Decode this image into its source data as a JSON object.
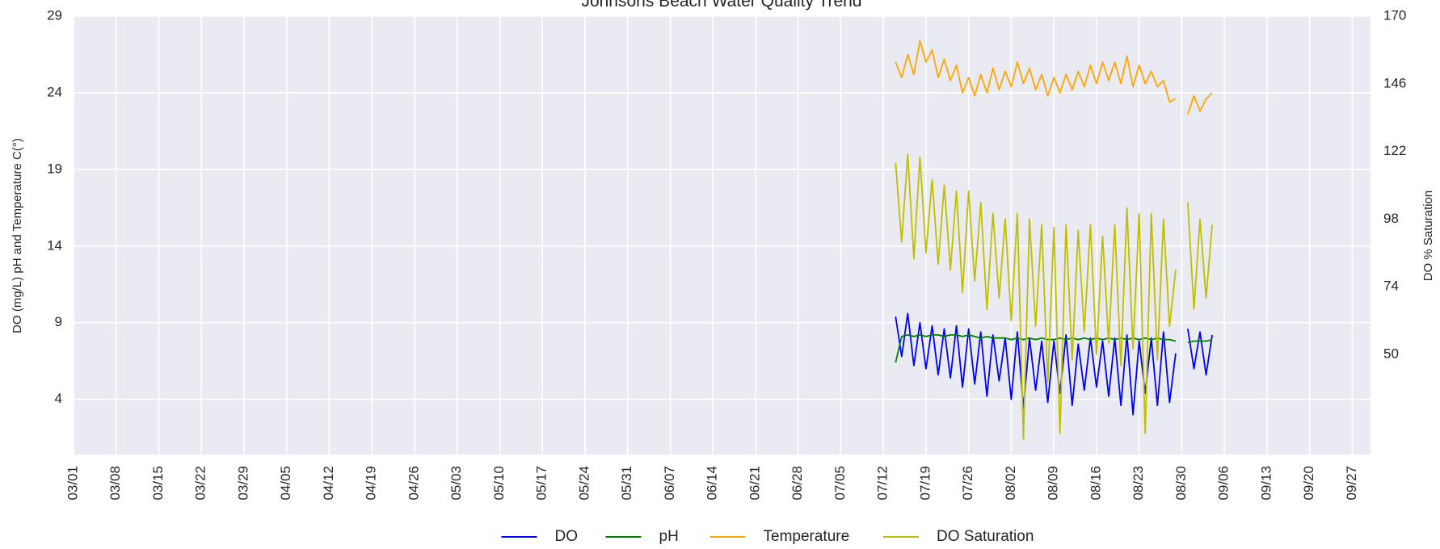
{
  "chart_data": {
    "type": "line",
    "title": "Johnsons Beach Water Quality Trend",
    "ylabel": "DO (mg/L) pH and Temperature C(°)",
    "y2label": "DO % Saturation",
    "x": [
      "07/14",
      "07/15",
      "07/16",
      "07/17",
      "07/18",
      "07/19",
      "07/20",
      "07/21",
      "07/22",
      "07/23",
      "07/24",
      "07/25",
      "07/26",
      "07/27",
      "07/28",
      "07/29",
      "07/30",
      "07/31",
      "08/01",
      "08/02",
      "08/03",
      "08/04",
      "08/05",
      "08/06",
      "08/07",
      "08/08",
      "08/09",
      "08/10",
      "08/11",
      "08/12",
      "08/13",
      "08/14",
      "08/15",
      "08/16",
      "08/17",
      "08/18",
      "08/19",
      "08/20",
      "08/21",
      "08/22",
      "08/23",
      "08/24",
      "08/25",
      "08/26",
      "08/27",
      "08/28",
      "08/29",
      "08/30",
      "08/31",
      "09/01",
      "09/02",
      "09/03",
      "09/04"
    ],
    "xlim": [
      "03/01",
      "09/30"
    ],
    "xticks": [
      "03/01",
      "03/08",
      "03/15",
      "03/22",
      "03/29",
      "04/05",
      "04/12",
      "04/19",
      "04/26",
      "05/03",
      "05/10",
      "05/17",
      "05/24",
      "05/31",
      "06/07",
      "06/14",
      "06/21",
      "06/28",
      "07/05",
      "07/12",
      "07/19",
      "07/26",
      "08/02",
      "08/09",
      "08/16",
      "08/23",
      "08/30",
      "09/06",
      "09/13",
      "09/20",
      "09/27"
    ],
    "ylim": [
      0.4,
      29
    ],
    "yticks": [
      4,
      9,
      14,
      19,
      24,
      29
    ],
    "y2lim": [
      14.5,
      170
    ],
    "y2ticks": [
      50,
      74,
      98,
      122,
      146,
      170
    ],
    "grid": true,
    "legend": "bottom",
    "series": [
      {
        "name": "DO",
        "color": "#0000ff",
        "values": [
          9.4,
          6.8,
          9.6,
          6.2,
          9.0,
          6.0,
          8.8,
          5.6,
          8.6,
          5.4,
          8.8,
          4.8,
          8.6,
          5.0,
          8.4,
          4.2,
          8.2,
          5.2,
          8.0,
          4.0,
          8.4,
          3.4,
          8.0,
          4.6,
          7.8,
          3.8,
          7.8,
          4.4,
          8.2,
          3.6,
          7.6,
          4.6,
          8.0,
          4.8,
          7.8,
          4.2,
          8.0,
          3.6,
          8.2,
          3.0,
          7.8,
          4.4,
          8.0,
          3.6,
          8.4,
          3.8,
          7.0,
          null,
          8.6,
          6.0,
          8.4,
          5.6,
          8.2
        ]
      },
      {
        "name": "pH",
        "color": "#008000",
        "values": [
          6.4,
          8.1,
          8.2,
          8.1,
          8.2,
          8.1,
          8.2,
          8.2,
          8.1,
          8.2,
          8.2,
          8.1,
          8.2,
          8.1,
          8.0,
          8.1,
          8.0,
          8.0,
          8.0,
          7.9,
          8.0,
          7.9,
          8.0,
          7.9,
          8.0,
          7.9,
          7.9,
          8.0,
          7.9,
          8.0,
          7.9,
          8.0,
          7.9,
          8.0,
          7.9,
          8.0,
          7.9,
          8.0,
          7.9,
          8.0,
          7.9,
          8.0,
          7.9,
          8.0,
          7.9,
          7.9,
          7.8,
          null,
          7.7,
          7.8,
          7.8,
          7.8,
          7.9
        ]
      },
      {
        "name": "Temperature",
        "color": "#ffa500",
        "values": [
          26.0,
          25.0,
          26.5,
          25.2,
          27.4,
          26.0,
          26.8,
          25.0,
          26.2,
          24.8,
          25.8,
          24.0,
          25.0,
          23.8,
          25.2,
          24.0,
          25.6,
          24.2,
          25.4,
          24.4,
          26.0,
          24.6,
          25.6,
          24.2,
          25.2,
          23.8,
          25.0,
          24.0,
          25.2,
          24.2,
          25.4,
          24.4,
          25.8,
          24.6,
          26.0,
          24.8,
          26.0,
          24.6,
          26.4,
          24.4,
          25.8,
          24.6,
          25.4,
          24.4,
          24.8,
          23.4,
          23.6,
          null,
          22.6,
          23.8,
          22.8,
          23.6,
          24.0
        ]
      },
      {
        "name": "DO Saturation",
        "color": "#bfbf00",
        "axis": "y2",
        "values": [
          118,
          90,
          121,
          84,
          120,
          86,
          112,
          82,
          110,
          80,
          108,
          72,
          108,
          76,
          104,
          66,
          100,
          70,
          98,
          62,
          100,
          20,
          98,
          60,
          96,
          40,
          95,
          22,
          96,
          48,
          94,
          58,
          96,
          50,
          92,
          54,
          96,
          46,
          102,
          52,
          100,
          22,
          100,
          48,
          98,
          60,
          80,
          null,
          104,
          66,
          98,
          70,
          96
        ]
      }
    ]
  }
}
